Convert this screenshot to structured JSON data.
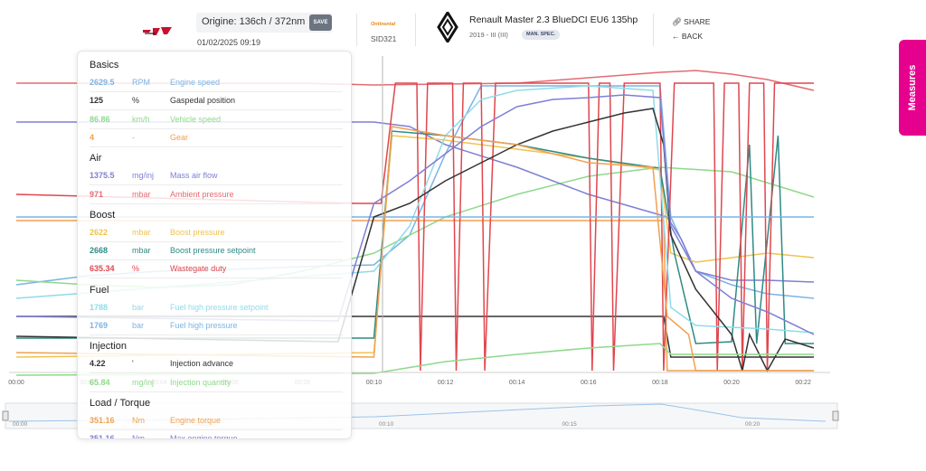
{
  "header": {
    "origin_label": "Origine: 136ch / 372nm",
    "save_label": "SAVE",
    "date": "01/02/2025 09:19",
    "ecu_brand": "Ontinental",
    "ecu_id": "SID321",
    "vehicle_title": "Renault Master 2.3 BlueDCI EU6 135hp",
    "vehicle_sub": "2019 - III (III)",
    "spec_badge": "MAN. SPEC.",
    "share_label": "SHARE",
    "back_label": "BACK",
    "share_icon": "link-icon",
    "back_icon": "arrow-left-icon"
  },
  "measures_tab": "Measures",
  "panel": {
    "sections": [
      {
        "title": "Basics",
        "rows": [
          {
            "value": "2629.5",
            "unit": "RPM",
            "name": "Engine speed",
            "color": "#7ab4e6"
          },
          {
            "value": "125",
            "unit": "%",
            "name": "Gaspedal position",
            "color": "#333333"
          },
          {
            "value": "86.86",
            "unit": "km/h",
            "name": "Vehicle speed",
            "color": "#8dd98a"
          },
          {
            "value": "4",
            "unit": "-",
            "name": "Gear",
            "color": "#f0a050"
          }
        ]
      },
      {
        "title": "Air",
        "rows": [
          {
            "value": "1375.5",
            "unit": "mg/inj",
            "name": "Mass air flow",
            "color": "#7d80d4"
          },
          {
            "value": "971",
            "unit": "mbar",
            "name": "Ambient pressure",
            "color": "#e46b72"
          }
        ]
      },
      {
        "title": "Boost",
        "rows": [
          {
            "value": "2622",
            "unit": "mbar",
            "name": "Boost pressure",
            "color": "#f1c24e"
          },
          {
            "value": "2668",
            "unit": "mbar",
            "name": "Boost pressure setpoint",
            "color": "#2e8b84"
          },
          {
            "value": "635.34",
            "unit": "%",
            "name": "Wastegate duty",
            "color": "#e0464e"
          }
        ]
      },
      {
        "title": "Fuel",
        "rows": [
          {
            "value": "1788",
            "unit": "bar",
            "name": "Fuel high pressure setpoint",
            "color": "#8fdbe8"
          },
          {
            "value": "1769",
            "unit": "bar",
            "name": "Fuel high pressure",
            "color": "#7ab4e6"
          }
        ]
      },
      {
        "title": "Injection",
        "rows": [
          {
            "value": "4.22",
            "unit": "'",
            "name": "Injection advance",
            "color": "#333333"
          },
          {
            "value": "65.84",
            "unit": "mg/inj",
            "name": "Injection quantity",
            "color": "#8dd98a"
          }
        ]
      },
      {
        "title": "Load / Torque",
        "rows": [
          {
            "value": "351.16",
            "unit": "Nm",
            "name": "Engine torque",
            "color": "#f0a050"
          },
          {
            "value": "351.16",
            "unit": "Nm",
            "name": "Max engine torque",
            "color": "#7d80d4"
          }
        ]
      }
    ]
  },
  "chart_data": {
    "type": "line",
    "xlabel": "",
    "ylabel": "",
    "x_ticks": [
      "00:00",
      "00:02",
      "00:04",
      "00:06",
      "00:08",
      "00:10",
      "00:12",
      "00:14",
      "00:16",
      "00:18",
      "00:20",
      "00:22"
    ],
    "navigator_ticks": [
      "00:00",
      "00:05",
      "00:10",
      "00:15",
      "00:20"
    ],
    "cursor_time": "00:10",
    "legend": "none",
    "grid": false,
    "series": [
      {
        "name": "Engine speed",
        "color": "#7ab4e6",
        "points": [
          [
            0,
            315
          ],
          [
            2,
            305
          ],
          [
            4,
            300
          ],
          [
            6,
            298
          ],
          [
            8,
            295
          ],
          [
            10,
            293
          ],
          [
            11,
            260
          ],
          [
            12,
            170
          ],
          [
            13,
            95
          ],
          [
            16,
            95
          ],
          [
            18,
            95
          ],
          [
            18.3,
            240
          ],
          [
            19,
            300
          ],
          [
            20,
            315
          ],
          [
            21,
            325
          ],
          [
            22.3,
            330
          ]
        ]
      },
      {
        "name": "Gaspedal position",
        "color": "#333333",
        "points": [
          [
            0,
            350
          ],
          [
            10,
            350
          ],
          [
            18.1,
            350
          ],
          [
            18.3,
            395
          ],
          [
            22.3,
            395
          ]
        ]
      },
      {
        "name": "Vehicle speed",
        "color": "#8dd98a",
        "points": [
          [
            0,
            310
          ],
          [
            2,
            315
          ],
          [
            4,
            318
          ],
          [
            6,
            315
          ],
          [
            8,
            300
          ],
          [
            10,
            280
          ],
          [
            12,
            240
          ],
          [
            14,
            215
          ],
          [
            16,
            195
          ],
          [
            18,
            185
          ],
          [
            20,
            190
          ],
          [
            22.3,
            218
          ]
        ]
      },
      {
        "name": "Gear",
        "color": "#f0a050",
        "points": [
          [
            0,
            244
          ],
          [
            18.1,
            244
          ],
          [
            18.2,
            410
          ],
          [
            22.3,
            410
          ]
        ]
      },
      {
        "name": "Mass air flow",
        "color": "#7d80d4",
        "points": [
          [
            0,
            135
          ],
          [
            10,
            135
          ],
          [
            11,
            140
          ],
          [
            12,
            160
          ],
          [
            14,
            185
          ],
          [
            16,
            215
          ],
          [
            17.5,
            232
          ],
          [
            18.2,
            240
          ],
          [
            18.6,
            265
          ],
          [
            19,
            300
          ],
          [
            20,
            310
          ],
          [
            21,
            310
          ],
          [
            22.3,
            312
          ]
        ]
      },
      {
        "name": "Ambient pressure",
        "color": "#e46b72",
        "points": [
          [
            0,
            92
          ],
          [
            8,
            92
          ],
          [
            10,
            94
          ],
          [
            14,
            92
          ],
          [
            16,
            86
          ],
          [
            18,
            80
          ],
          [
            19,
            78
          ],
          [
            20,
            82
          ],
          [
            21,
            88
          ],
          [
            22.3,
            100
          ]
        ]
      },
      {
        "name": "Boost pressure",
        "color": "#f1c24e",
        "points": [
          [
            0,
            395
          ],
          [
            10,
            390
          ],
          [
            10.5,
            150
          ],
          [
            12,
            155
          ],
          [
            14,
            165
          ],
          [
            16,
            175
          ],
          [
            18,
            188
          ],
          [
            18.3,
            280
          ],
          [
            19,
            290
          ],
          [
            20,
            285
          ],
          [
            21,
            280
          ],
          [
            22.3,
            285
          ]
        ]
      },
      {
        "name": "Boost pressure setpoint",
        "color": "#2e8b84",
        "points": [
          [
            0,
            374
          ],
          [
            10,
            374
          ],
          [
            10.5,
            145
          ],
          [
            12,
            150
          ],
          [
            14,
            160
          ],
          [
            16,
            175
          ],
          [
            18,
            186
          ],
          [
            18.4,
            280
          ],
          [
            19,
            380
          ],
          [
            20,
            378
          ],
          [
            20.5,
            160
          ],
          [
            20.7,
            380
          ],
          [
            21.3,
            150
          ],
          [
            21.5,
            380
          ],
          [
            22.3,
            380
          ]
        ]
      },
      {
        "name": "Wastegate duty",
        "color": "#e0464e",
        "points": [
          [
            0,
            215
          ],
          [
            9.5,
            225
          ],
          [
            10.2,
            225
          ],
          [
            10.6,
            92
          ],
          [
            11.2,
            92
          ],
          [
            11.3,
            410
          ],
          [
            11.5,
            92
          ],
          [
            12.2,
            92
          ],
          [
            12.3,
            410
          ],
          [
            12.5,
            92
          ],
          [
            13,
            92
          ],
          [
            13.1,
            410
          ],
          [
            13.4,
            92
          ],
          [
            16,
            92
          ],
          [
            16.1,
            410
          ],
          [
            16.3,
            92
          ],
          [
            16.6,
            92
          ],
          [
            16.7,
            410
          ],
          [
            17,
            92
          ],
          [
            18,
            92
          ],
          [
            18.1,
            410
          ],
          [
            18.4,
            92
          ],
          [
            19.5,
            92
          ],
          [
            19.6,
            410
          ],
          [
            19.8,
            92
          ],
          [
            20.2,
            92
          ],
          [
            20.3,
            410
          ],
          [
            20.5,
            92
          ],
          [
            20.9,
            92
          ],
          [
            21,
            410
          ],
          [
            21.2,
            92
          ],
          [
            22.3,
            92
          ]
        ]
      },
      {
        "name": "Fuel high pressure setpoint",
        "color": "#8fdbe8",
        "points": [
          [
            0,
            330
          ],
          [
            10,
            300
          ],
          [
            11,
            250
          ],
          [
            12,
            150
          ],
          [
            13,
            110
          ],
          [
            14,
            100
          ],
          [
            16,
            95
          ],
          [
            17.8,
            100
          ],
          [
            18.3,
            340
          ],
          [
            19,
            360
          ],
          [
            20,
            362
          ],
          [
            21,
            364
          ],
          [
            22.3,
            368
          ]
        ]
      },
      {
        "name": "Fuel high pressure",
        "color": "#7ab4e6",
        "points": [
          [
            0,
            240
          ],
          [
            22.3,
            240
          ]
        ]
      },
      {
        "name": "Injection advance",
        "color": "#333333",
        "points": [
          [
            0,
            372
          ],
          [
            9,
            378
          ],
          [
            10,
            240
          ],
          [
            11,
            225
          ],
          [
            12,
            200
          ],
          [
            13,
            180
          ],
          [
            14,
            160
          ],
          [
            15,
            145
          ],
          [
            16,
            135
          ],
          [
            17,
            125
          ],
          [
            17.8,
            120
          ],
          [
            18.1,
            160
          ],
          [
            18.3,
            260
          ],
          [
            19,
            320
          ],
          [
            20,
            370
          ],
          [
            20.3,
            410
          ],
          [
            20.5,
            370
          ],
          [
            21,
            410
          ],
          [
            21.5,
            375
          ],
          [
            22.3,
            385
          ]
        ]
      },
      {
        "name": "Injection quantity",
        "color": "#8dd98a",
        "points": [
          [
            0,
            415
          ],
          [
            10,
            413
          ],
          [
            12,
            400
          ],
          [
            14,
            392
          ],
          [
            16,
            385
          ],
          [
            18,
            380
          ],
          [
            18.3,
            392
          ],
          [
            22.3,
            392
          ]
        ]
      },
      {
        "name": "Engine torque",
        "color": "#f0a050",
        "points": [
          [
            0,
            390
          ],
          [
            10,
            395
          ],
          [
            10.5,
            140
          ],
          [
            12,
            150
          ],
          [
            14,
            160
          ],
          [
            16,
            180
          ],
          [
            17.8,
            185
          ],
          [
            18.2,
            350
          ],
          [
            18.8,
            370
          ],
          [
            19,
            410
          ],
          [
            22.3,
            410
          ]
        ]
      },
      {
        "name": "Max engine torque",
        "color": "#7d80d4",
        "points": [
          [
            0,
            350
          ],
          [
            9,
            355
          ],
          [
            10,
            225
          ],
          [
            11,
            200
          ],
          [
            12,
            170
          ],
          [
            13,
            140
          ],
          [
            14,
            118
          ],
          [
            15,
            110
          ],
          [
            16,
            108
          ],
          [
            17,
            105
          ],
          [
            18,
            108
          ],
          [
            18.3,
            250
          ],
          [
            19,
            300
          ],
          [
            20,
            330
          ],
          [
            21,
            345
          ],
          [
            22.3,
            370
          ]
        ]
      }
    ]
  }
}
